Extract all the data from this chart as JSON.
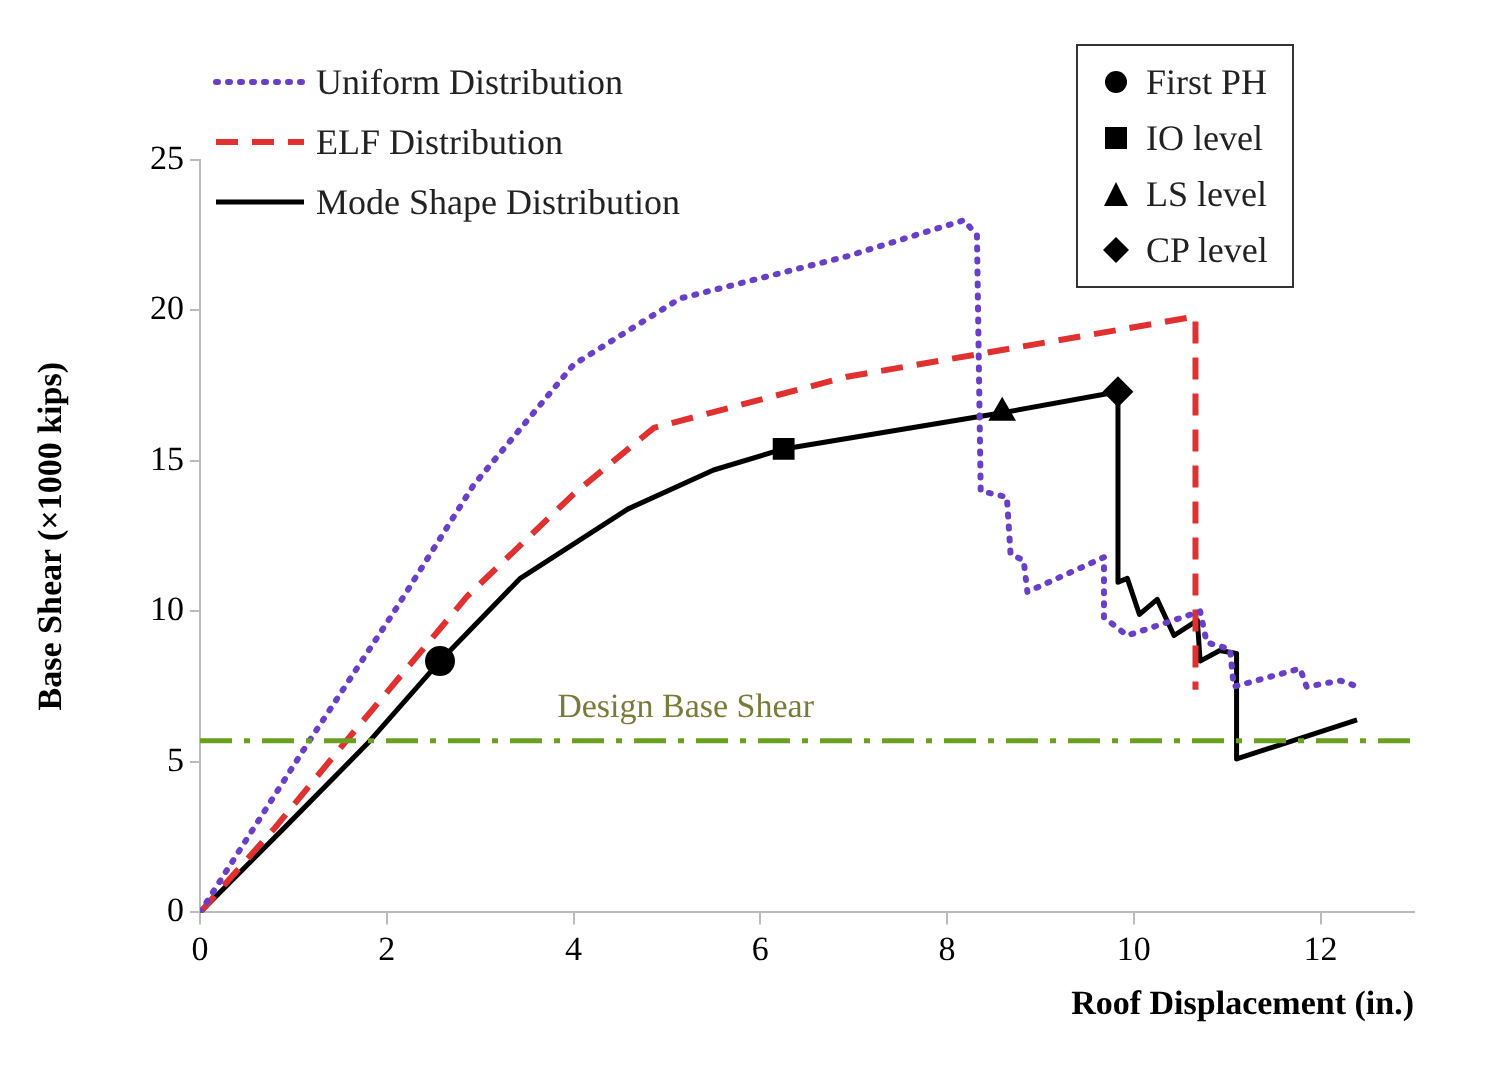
{
  "chart_data": {
    "type": "line",
    "xlabel": "Roof Displacement (in.)",
    "ylabel": "Base Shear (×1000 kips)",
    "xlim": [
      0,
      13
    ],
    "xticks": [
      0,
      2,
      4,
      6,
      8,
      10,
      12
    ],
    "ylim": [
      0,
      25
    ],
    "yticks": [
      0,
      5,
      10,
      15,
      20,
      25
    ],
    "grid": false,
    "legend": "top",
    "series": [
      {
        "name": "Uniform Distribution",
        "type": "line",
        "color": "#6a3fc8",
        "line_style": "dotted",
        "marker": "none",
        "x": [
          0,
          1.15,
          2.08,
          2.93,
          4.0,
          5.14,
          6.93,
          8.18,
          8.32,
          8.36,
          8.64,
          8.68,
          8.82,
          8.86,
          9.68,
          9.68,
          9.93,
          10.71,
          10.78,
          11.03,
          11.07,
          11.78,
          11.85,
          12.21,
          12.4
        ],
        "values": [
          0,
          5.6,
          10.0,
          14.2,
          18.2,
          20.4,
          21.8,
          23.0,
          22.5,
          14.0,
          13.8,
          11.9,
          11.7,
          10.65,
          11.8,
          9.8,
          9.2,
          10.0,
          8.97,
          8.75,
          7.5,
          8.1,
          7.5,
          7.7,
          7.5
        ]
      },
      {
        "name": "ELF Distribution",
        "type": "line",
        "color": "#e03030",
        "line_style": "dashed",
        "marker": "none",
        "x": [
          0,
          0.8,
          1.54,
          2.86,
          4.0,
          4.86,
          6.93,
          8.43,
          10.66,
          10.66
        ],
        "values": [
          0,
          2.8,
          5.6,
          10.5,
          13.9,
          16.1,
          17.8,
          18.6,
          19.8,
          7.4
        ]
      },
      {
        "name": "Mode Shape Distribution",
        "type": "line",
        "color": "#000000",
        "line_style": "solid",
        "marker": "none",
        "x": [
          0,
          0.9,
          1.79,
          2.57,
          3.43,
          4.58,
          5.5,
          6.25,
          8.59,
          9.83,
          9.83,
          9.93,
          10.06,
          10.25,
          10.43,
          10.68,
          10.71,
          10.92,
          11.1,
          11.1,
          12.39
        ],
        "values": [
          0,
          2.8,
          5.6,
          8.35,
          11.1,
          13.4,
          14.7,
          15.4,
          16.6,
          17.3,
          10.97,
          11.1,
          9.9,
          10.4,
          9.2,
          9.7,
          8.35,
          8.7,
          8.6,
          5.1,
          6.4
        ]
      },
      {
        "name": "First PH",
        "type": "scatter",
        "color": "#000000",
        "marker": "circle",
        "x": [
          2.57
        ],
        "values": [
          8.35
        ]
      },
      {
        "name": "IO level",
        "type": "scatter",
        "color": "#000000",
        "marker": "square",
        "x": [
          6.25
        ],
        "values": [
          15.4
        ]
      },
      {
        "name": "LS level",
        "type": "scatter",
        "color": "#000000",
        "marker": "triangle",
        "x": [
          8.59
        ],
        "values": [
          16.6
        ]
      },
      {
        "name": "CP level",
        "type": "scatter",
        "color": "#000000",
        "marker": "diamond",
        "x": [
          9.83
        ],
        "values": [
          17.3
        ]
      }
    ],
    "ref_lines": [
      {
        "axis": "y",
        "value": 5.7,
        "label": "Design Base Shear",
        "color": "#6aa020",
        "line_style": "dashdot"
      }
    ]
  }
}
